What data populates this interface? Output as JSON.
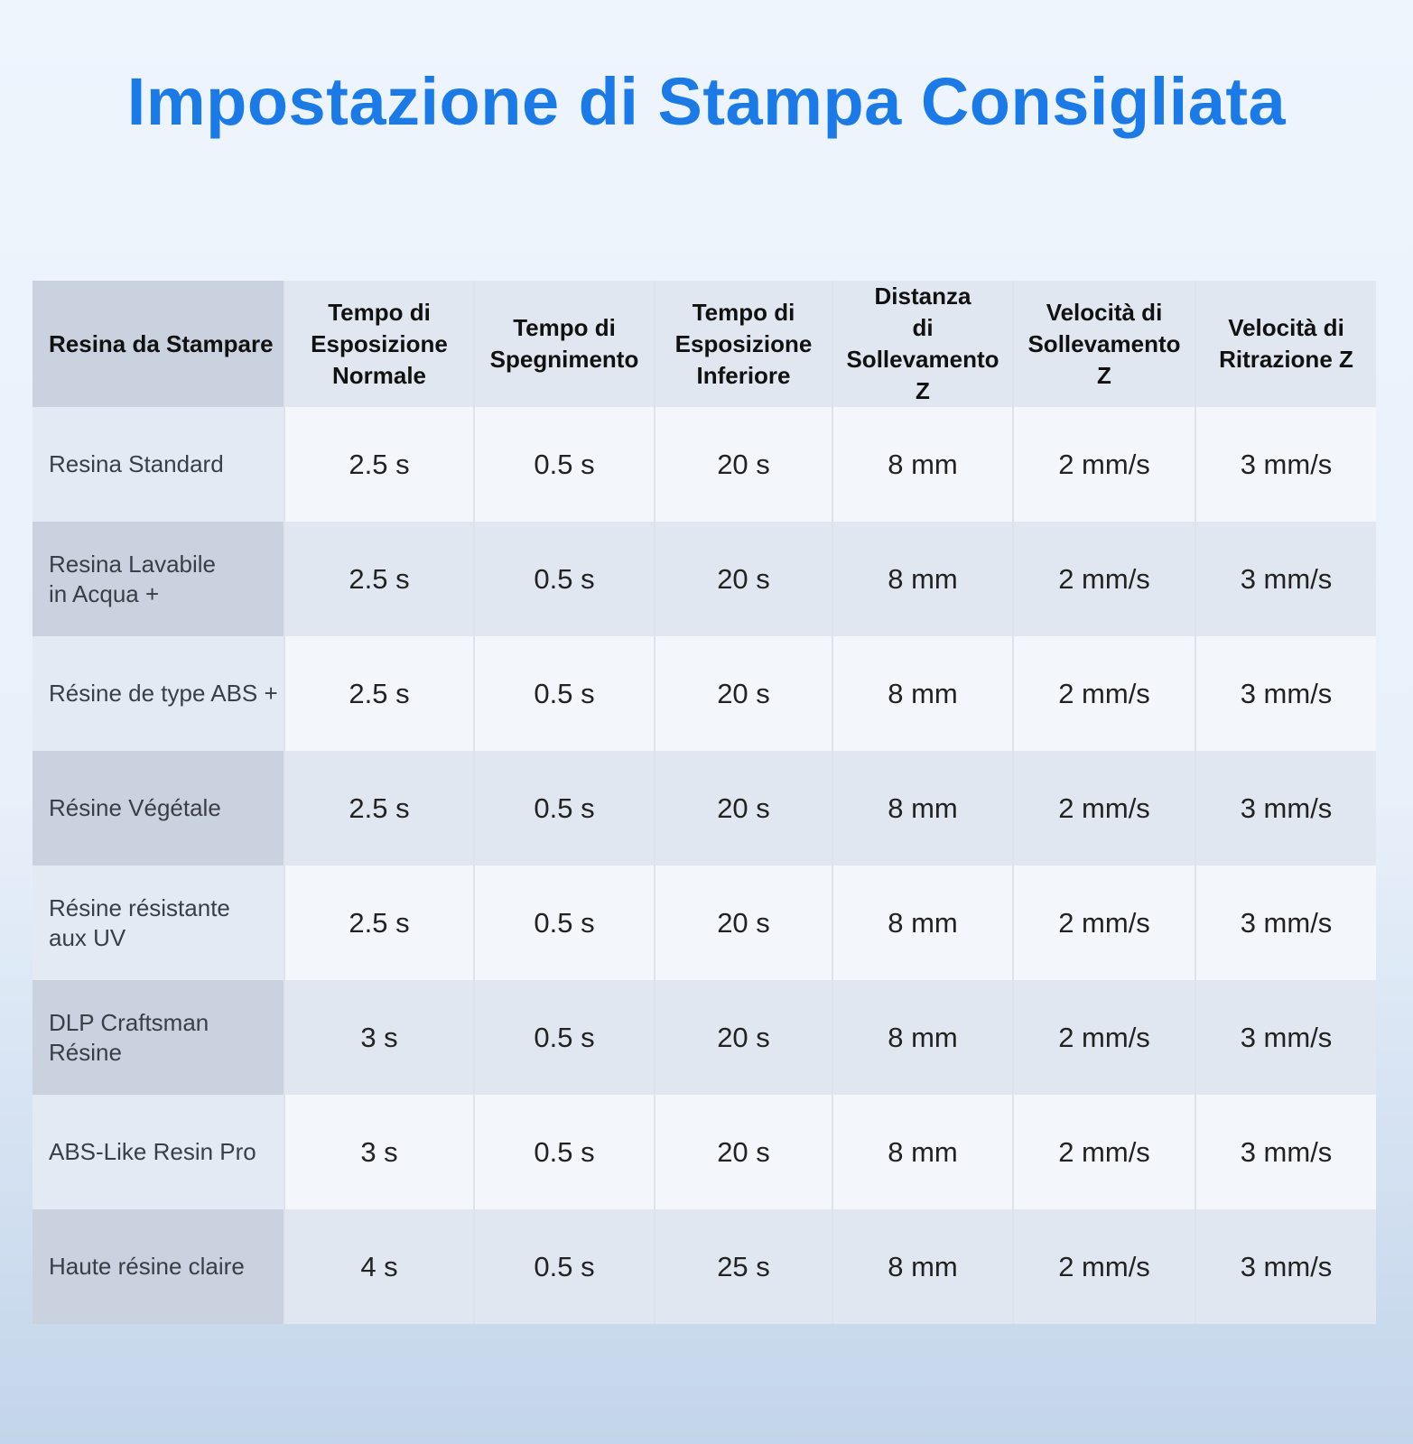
{
  "header": {
    "title": "Impostazione di Stampa Consigliata"
  },
  "table": {
    "columns": [
      "Resina da Stampare",
      "Tempo di\nEsposizione\nNormale",
      "Tempo di\nSpegnimento",
      "Tempo di\nEsposizione\nInferiore",
      "Distanza\ndi\nSollevamento Z",
      "Velocità di\nSollevamento Z",
      "Velocità di\nRitrazione Z"
    ],
    "rows": [
      [
        "Resina Standard",
        "2.5 s",
        "0.5 s",
        "20 s",
        "8 mm",
        "2 mm/s",
        "3 mm/s"
      ],
      [
        "Resina Lavabile\nin Acqua +",
        "2.5 s",
        "0.5 s",
        "20 s",
        "8 mm",
        "2 mm/s",
        "3 mm/s"
      ],
      [
        "Résine de type ABS +",
        "2.5 s",
        "0.5 s",
        "20 s",
        "8 mm",
        "2 mm/s",
        "3 mm/s"
      ],
      [
        "Résine Végétale",
        "2.5 s",
        "0.5 s",
        "20 s",
        "8 mm",
        "2 mm/s",
        "3 mm/s"
      ],
      [
        "Résine résistante\naux UV",
        "2.5 s",
        "0.5 s",
        "20 s",
        "8 mm",
        "2 mm/s",
        "3 mm/s"
      ],
      [
        "DLP Craftsman\nRésine",
        "3 s",
        "0.5 s",
        "20 s",
        "8 mm",
        "2 mm/s",
        "3 mm/s"
      ],
      [
        "ABS-Like Resin Pro",
        "3 s",
        "0.5 s",
        "20 s",
        "8 mm",
        "2 mm/s",
        "3 mm/s"
      ],
      [
        "Haute résine claire",
        "4 s",
        "0.5 s",
        "25 s",
        "8 mm",
        "2 mm/s",
        "3 mm/s"
      ]
    ]
  }
}
